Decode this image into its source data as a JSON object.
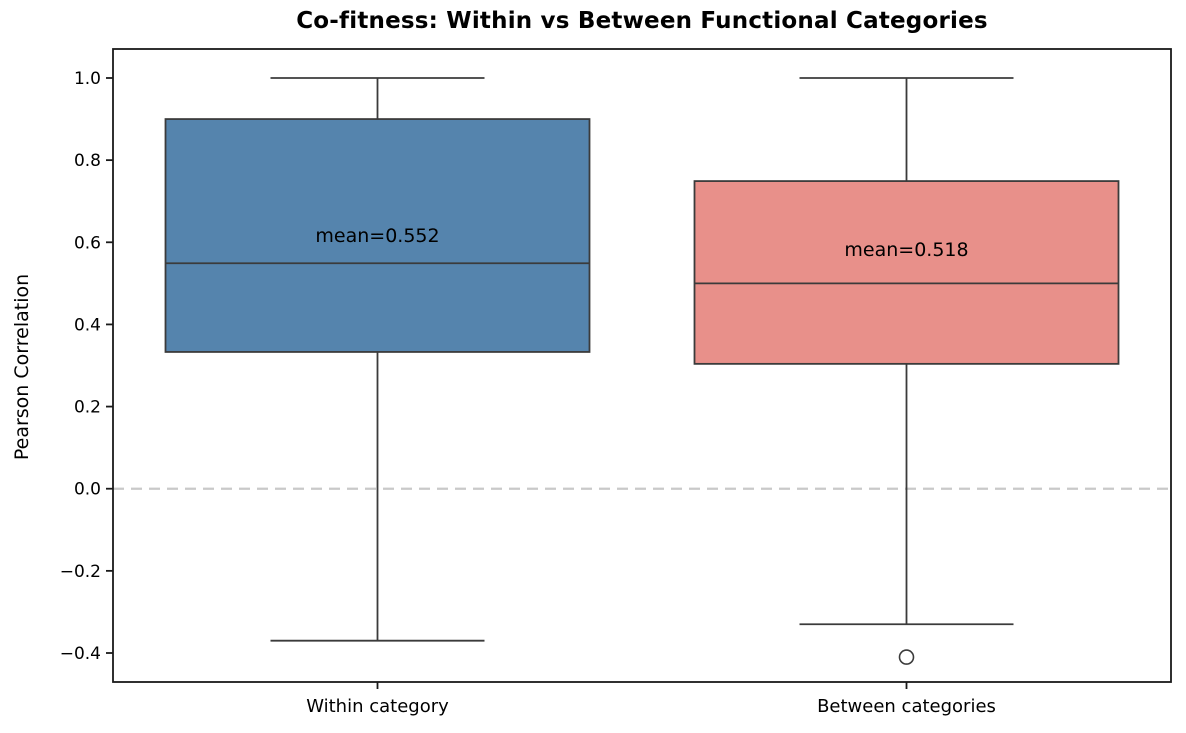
{
  "title": "Co-fitness: Within vs Between Functional Categories",
  "chart_data": {
    "type": "boxplot",
    "title": "Co-fitness: Within vs Between Functional Categories",
    "xlabel": "",
    "ylabel": "Pearson Correlation",
    "ylim": [
      -0.47,
      1.07
    ],
    "grid": false,
    "legend": "none",
    "categories": [
      "Within category",
      "Between categories"
    ],
    "yticks": [
      1.0,
      0.8,
      0.6,
      0.4,
      0.2,
      0.0,
      -0.2,
      -0.4
    ],
    "ytick_labels": [
      "1.0",
      "0.8",
      "0.6",
      "0.4",
      "0.2",
      "0.0",
      "−0.2",
      "−0.4"
    ],
    "zero_line": {
      "y": 0.0,
      "style": "dashed",
      "color": "#c9c9c9"
    },
    "series": [
      {
        "name": "Within category",
        "whisker_low": -0.37,
        "q1": 0.333,
        "median": 0.549,
        "q3": 0.9,
        "whisker_high": 1.0,
        "mean": 0.552,
        "mean_label": "mean=0.552",
        "outliers": [],
        "fill": "#5584AD"
      },
      {
        "name": "Between categories",
        "whisker_low": -0.33,
        "q1": 0.304,
        "median": 0.5,
        "q3": 0.749,
        "whisker_high": 1.0,
        "mean": 0.518,
        "mean_label": "mean=0.518",
        "outliers": [
          -0.41
        ],
        "fill": "#E8908A"
      }
    ],
    "colors": {
      "box_edge": "#3B3B3B",
      "whisker": "#3B3B3B",
      "median": "#3B3B3B",
      "spine": "#1A1A1A",
      "zero_line": "#C9C9C9",
      "text": "#000000"
    }
  }
}
